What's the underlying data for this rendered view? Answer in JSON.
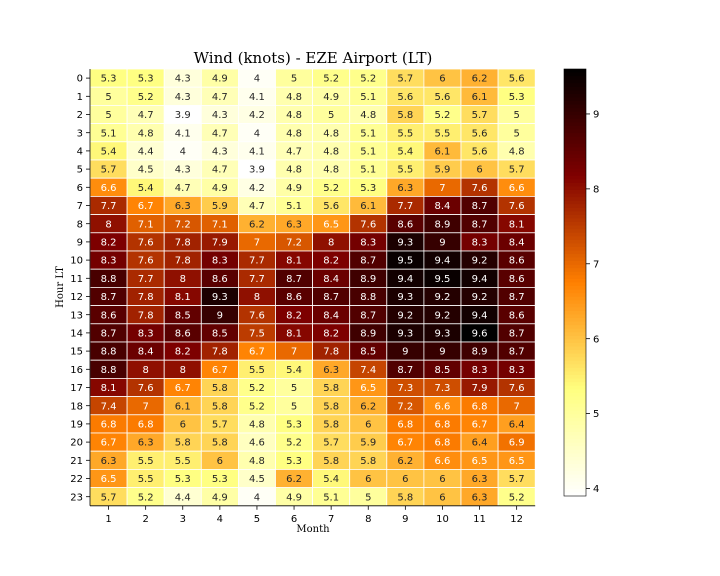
{
  "chart_data": {
    "type": "heatmap",
    "title": "Wind (knots) - EZE Airport (LT)",
    "xlabel": "Month",
    "ylabel": "Hour LT",
    "x": [
      "1",
      "2",
      "3",
      "4",
      "5",
      "6",
      "7",
      "8",
      "9",
      "10",
      "11",
      "12"
    ],
    "y": [
      "0",
      "1",
      "2",
      "3",
      "4",
      "5",
      "6",
      "7",
      "8",
      "9",
      "10",
      "11",
      "12",
      "13",
      "14",
      "15",
      "16",
      "17",
      "18",
      "19",
      "20",
      "21",
      "22",
      "23"
    ],
    "values": [
      [
        5.3,
        5.3,
        4.3,
        4.9,
        4,
        5,
        5.2,
        5.2,
        5.7,
        6,
        6.2,
        5.6
      ],
      [
        5,
        5.2,
        4.3,
        4.7,
        4.1,
        4.8,
        4.9,
        5.1,
        5.6,
        5.6,
        6.1,
        5.3
      ],
      [
        5,
        4.7,
        3.9,
        4.3,
        4.2,
        4.8,
        5,
        4.8,
        5.8,
        5.2,
        5.7,
        5
      ],
      [
        5.1,
        4.8,
        4.1,
        4.7,
        4,
        4.8,
        4.8,
        5.1,
        5.5,
        5.5,
        5.6,
        5
      ],
      [
        5.4,
        4.4,
        4,
        4.3,
        4.1,
        4.7,
        4.8,
        5.1,
        5.4,
        6.1,
        5.6,
        4.8
      ],
      [
        5.7,
        4.5,
        4.3,
        4.7,
        3.9,
        4.8,
        4.8,
        5.1,
        5.5,
        5.9,
        6,
        5.7
      ],
      [
        6.6,
        5.4,
        4.7,
        4.9,
        4.2,
        4.9,
        5.2,
        5.3,
        6.3,
        7,
        7.6,
        6.6
      ],
      [
        7.7,
        6.7,
        6.3,
        5.9,
        4.7,
        5.1,
        5.6,
        6.1,
        7.7,
        8.4,
        8.7,
        7.6
      ],
      [
        8,
        7.1,
        7.2,
        7.1,
        6.2,
        6.3,
        6.5,
        7.6,
        8.6,
        8.9,
        8.7,
        8.1
      ],
      [
        8.2,
        7.6,
        7.8,
        7.9,
        7,
        7.2,
        8,
        8.3,
        9.3,
        9,
        8.3,
        8.4
      ],
      [
        8.3,
        7.6,
        7.8,
        8.3,
        7.7,
        8.1,
        8.2,
        8.7,
        9.5,
        9.4,
        9.2,
        8.6
      ],
      [
        8.8,
        7.7,
        8,
        8.6,
        7.7,
        8.7,
        8.4,
        8.9,
        9.4,
        9.5,
        9.4,
        8.6
      ],
      [
        8.7,
        7.8,
        8.1,
        9.3,
        8,
        8.6,
        8.7,
        8.8,
        9.3,
        9.2,
        9.2,
        8.7
      ],
      [
        8.6,
        7.8,
        8.5,
        9,
        7.6,
        8.2,
        8.4,
        8.7,
        9.2,
        9.2,
        9.4,
        8.6
      ],
      [
        8.7,
        8.3,
        8.6,
        8.5,
        7.5,
        8.1,
        8.2,
        8.9,
        9.3,
        9.3,
        9.6,
        8.7
      ],
      [
        8.8,
        8.4,
        8.2,
        7.8,
        6.7,
        7,
        7.8,
        8.5,
        9,
        9,
        8.9,
        8.7
      ],
      [
        8.8,
        8,
        8,
        6.7,
        5.5,
        5.4,
        6.3,
        7.4,
        8.7,
        8.5,
        8.3,
        8.3
      ],
      [
        8.1,
        7.6,
        6.7,
        5.8,
        5.2,
        5,
        5.8,
        6.5,
        7.3,
        7.3,
        7.9,
        7.6
      ],
      [
        7.4,
        7,
        6.1,
        5.8,
        5.2,
        5,
        5.8,
        6.2,
        7.2,
        6.6,
        6.8,
        7
      ],
      [
        6.8,
        6.8,
        6,
        5.7,
        4.8,
        5.3,
        5.8,
        6,
        6.8,
        6.8,
        6.7,
        6.4
      ],
      [
        6.7,
        6.3,
        5.8,
        5.8,
        4.6,
        5.2,
        5.7,
        5.9,
        6.7,
        6.8,
        6.4,
        6.9
      ],
      [
        6.3,
        5.5,
        5.5,
        6,
        4.8,
        5.3,
        5.8,
        5.8,
        6.2,
        6.6,
        6.5,
        6.5
      ],
      [
        6.5,
        5.5,
        5.3,
        5.3,
        4.5,
        6.2,
        5.4,
        6,
        6,
        6,
        6.3,
        5.7
      ],
      [
        5.7,
        5.2,
        4.4,
        4.9,
        4,
        4.9,
        5.1,
        5,
        5.8,
        6,
        6.3,
        5.2
      ]
    ],
    "vmin": 3.9,
    "vmax": 9.6,
    "colormap": "afmhot_r",
    "colorbar_ticks": [
      "4",
      "5",
      "6",
      "7",
      "8",
      "9"
    ],
    "grid": true,
    "cell_border_color": "#ffffff"
  }
}
